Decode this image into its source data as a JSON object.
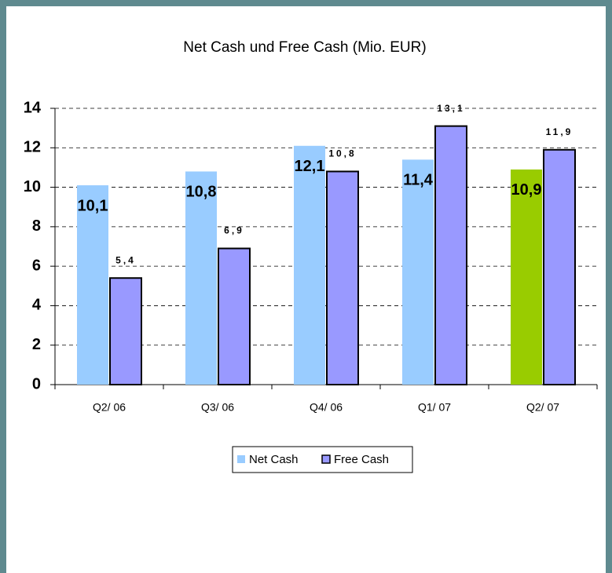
{
  "chart_data": {
    "type": "bar",
    "title": "Net Cash und Free Cash (Mio. EUR)",
    "categories": [
      "Q2/ 06",
      "Q3/ 06",
      "Q4/ 06",
      "Q1/ 07",
      "Q2/ 07"
    ],
    "series": [
      {
        "name": "Net Cash",
        "color": "#99ccff",
        "point_colors": [
          "#99ccff",
          "#99ccff",
          "#99ccff",
          "#99ccff",
          "#99cc00"
        ],
        "values": [
          10.1,
          10.8,
          12.1,
          11.4,
          10.9
        ],
        "value_labels": [
          "10,1",
          "10,8",
          "12,1",
          "11,4",
          "10,9"
        ]
      },
      {
        "name": "Free Cash",
        "color": "#9999ff",
        "values": [
          5.4,
          6.9,
          10.8,
          13.1,
          11.9
        ],
        "value_labels": [
          "5,4",
          "6,9",
          "10,8",
          "13,1",
          "11,9"
        ]
      }
    ],
    "ylim": [
      0,
      14
    ],
    "yticks": [
      0,
      2,
      4,
      6,
      8,
      10,
      12,
      14
    ],
    "grid": true,
    "legend": "bottom"
  }
}
